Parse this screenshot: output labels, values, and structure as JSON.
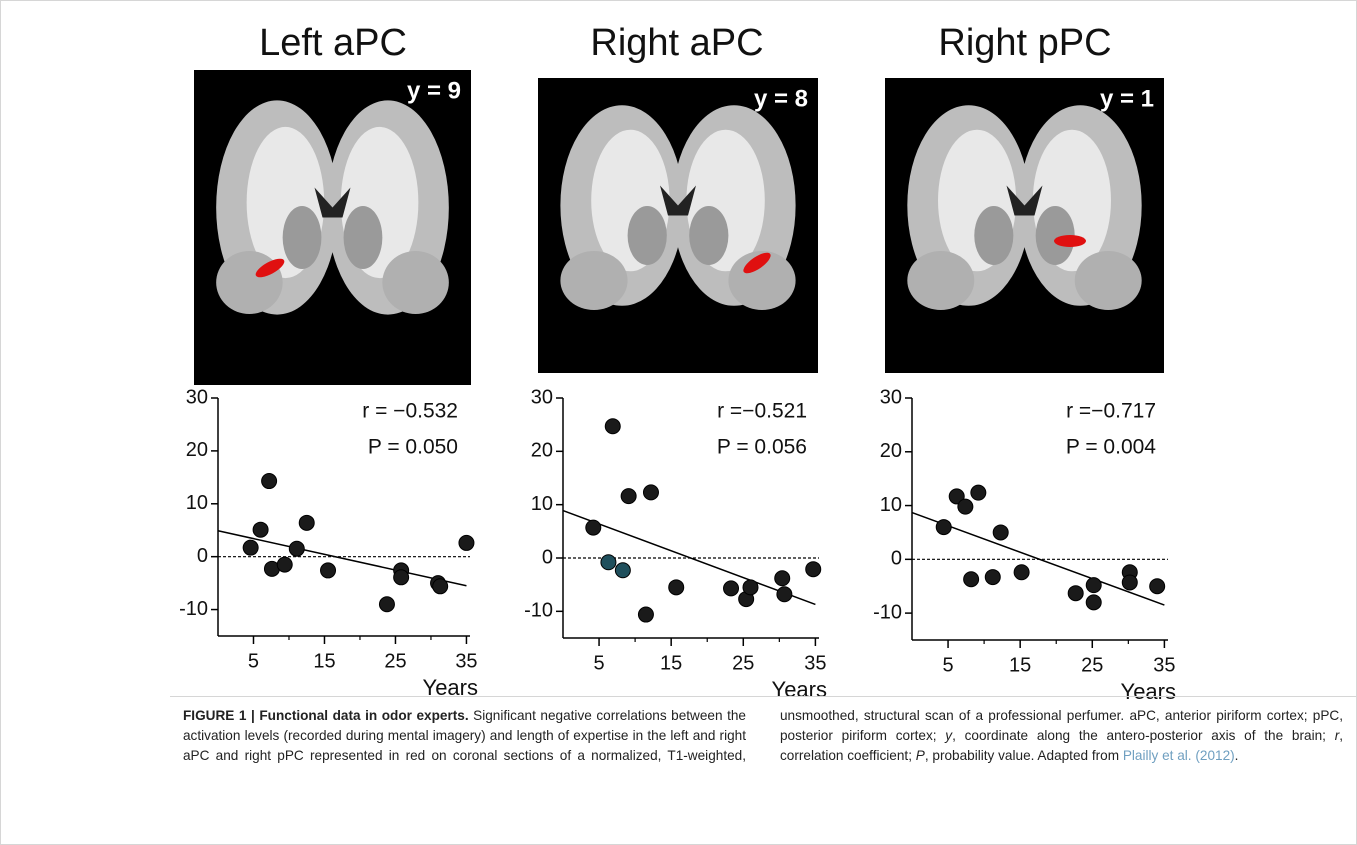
{
  "chart_data": [
    {
      "type": "scatter",
      "title": "Left aPC",
      "slice_label": "y = 9",
      "x": [
        4.6,
        6.0,
        7.2,
        7.6,
        9.4,
        11.1,
        12.5,
        15.5,
        23.8,
        25.8,
        25.8,
        31.0,
        31.3,
        35.0
      ],
      "y": [
        1.7,
        5.1,
        14.3,
        -2.3,
        -1.5,
        1.5,
        6.4,
        -2.6,
        -9.0,
        -2.6,
        -3.9,
        -5.0,
        -5.6,
        2.6
      ],
      "color": "#1a1a1a",
      "fit": {
        "x": [
          0,
          35
        ],
        "y": [
          4.9,
          -5.5
        ]
      },
      "reference_line": 0,
      "annotations": [
        "r = −0.532",
        "P = 0.050"
      ],
      "x_label": "Years",
      "xlim": [
        0,
        35.5
      ],
      "ylim": [
        -15,
        30
      ],
      "xticks": [
        5,
        15,
        25,
        35
      ],
      "x_minor_ticks": [
        10,
        20,
        30
      ],
      "yticks": [
        -10,
        0,
        10,
        20,
        30
      ]
    },
    {
      "type": "scatter",
      "title": "Right aPC",
      "slice_label": "y = 8",
      "x": [
        4.2,
        6.3,
        8.3,
        6.9,
        9.1,
        12.2,
        11.5,
        15.7,
        23.3,
        25.4,
        26.0,
        30.4,
        30.7,
        34.7
      ],
      "y": [
        5.7,
        -0.8,
        -2.3,
        24.7,
        11.6,
        12.3,
        -10.6,
        -5.5,
        -5.7,
        -7.7,
        -5.5,
        -3.8,
        -6.8,
        -2.1
      ],
      "color": "#1a1a1a",
      "point_colors": [
        "#1a1a1a",
        "#1f4f5c",
        "#1f4f5c",
        "#1a1a1a",
        "#1a1a1a",
        "#1a1a1a",
        "#1a1a1a",
        "#1a1a1a",
        "#1a1a1a",
        "#1a1a1a",
        "#1a1a1a",
        "#1a1a1a",
        "#1a1a1a",
        "#1a1a1a"
      ],
      "fit": {
        "x": [
          0,
          35
        ],
        "y": [
          8.9,
          -8.7
        ]
      },
      "reference_line": 0,
      "annotations": [
        "r =−0.521",
        "P = 0.056"
      ],
      "x_label": "Years",
      "xlim": [
        0,
        35.5
      ],
      "ylim": [
        -15,
        30
      ],
      "xticks": [
        5,
        15,
        25,
        35
      ],
      "x_minor_ticks": [
        10,
        20,
        30
      ],
      "yticks": [
        -10,
        0,
        10,
        20,
        30
      ]
    },
    {
      "type": "scatter",
      "title": "Right pPC",
      "slice_label": "y = 1",
      "x": [
        4.4,
        6.2,
        7.4,
        9.2,
        8.2,
        11.2,
        12.3,
        15.2,
        22.7,
        25.2,
        25.2,
        30.2,
        30.2,
        34.0
      ],
      "y": [
        6.0,
        11.7,
        9.8,
        12.4,
        -3.7,
        -3.3,
        5.0,
        -2.4,
        -6.3,
        -4.8,
        -8.0,
        -2.4,
        -4.3,
        -5.0
      ],
      "color": "#1a1a1a",
      "fit": {
        "x": [
          0,
          35
        ],
        "y": [
          8.7,
          -8.5
        ]
      },
      "reference_line": 0,
      "annotations": [
        "r =−0.717",
        "P = 0.004"
      ],
      "x_label": "Years",
      "xlim": [
        0,
        35.5
      ],
      "ylim": [
        -15,
        30
      ],
      "xticks": [
        5,
        15,
        25,
        35
      ],
      "x_minor_ticks": [
        10,
        20,
        30
      ],
      "yticks": [
        -10,
        0,
        10,
        20,
        30
      ]
    }
  ],
  "caption": {
    "label": "FIGURE 1 | Functional data in odor experts.",
    "body": [
      {
        "text": " Significant negative correlations between the activation levels (recorded during mental imagery) and length of expertise in the left and right aPC and right pPC represented in red on coronal sections of a normalized, T1-weighted, unsmoothed, structural scan of a professional perfumer. aPC, anterior piriform cortex; pPC, posterior piriform cortex; "
      },
      {
        "text": "y",
        "italic": true
      },
      {
        "text": ", coordinate along the antero-posterior axis of the brain; "
      },
      {
        "text": "r",
        "italic": true
      },
      {
        "text": ", correlation coefficient; "
      },
      {
        "text": "P",
        "italic": true
      },
      {
        "text": ", probability value. Adapted from "
      },
      {
        "text": "Plailly et al. (2012)",
        "link": true
      },
      {
        "text": "."
      }
    ]
  }
}
